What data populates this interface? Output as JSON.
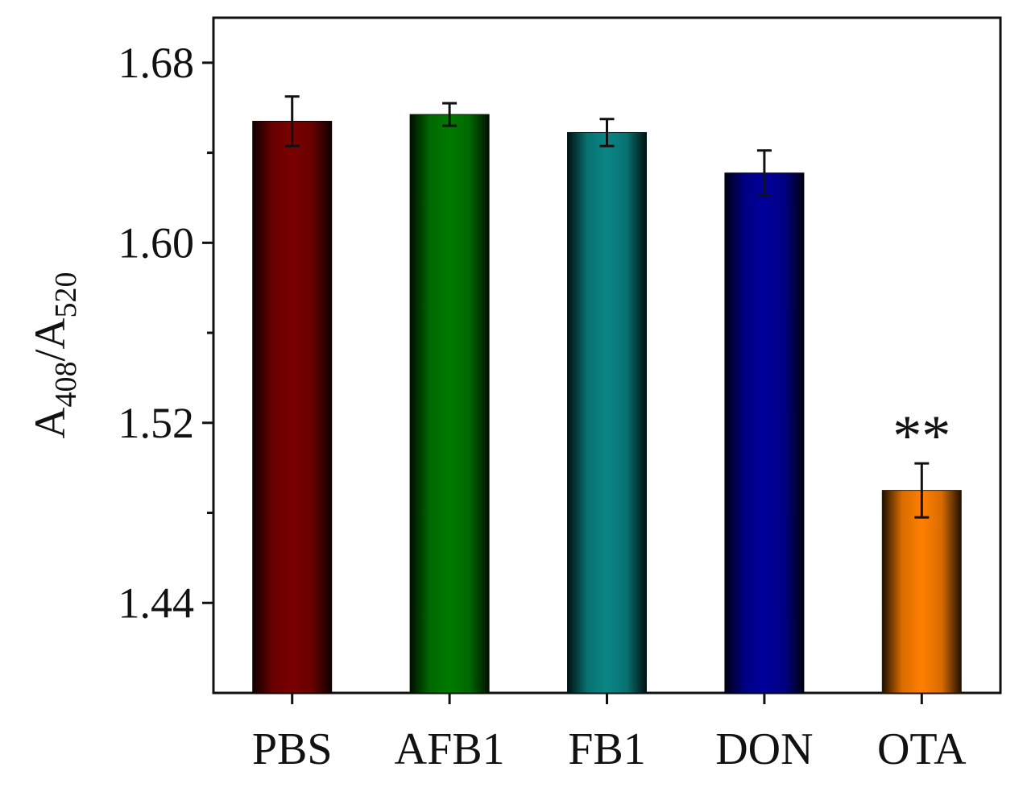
{
  "chart_data": {
    "type": "bar",
    "title": "",
    "xlabel": "",
    "ylabel": {
      "parts": [
        {
          "text": "A",
          "sub": false
        },
        {
          "text": "408",
          "sub": true
        },
        {
          "text": "/A",
          "sub": false
        },
        {
          "text": "520",
          "sub": true
        }
      ]
    },
    "categories": [
      "PBS",
      "AFB1",
      "FB1",
      "DON",
      "OTA"
    ],
    "values": [
      1.654,
      1.657,
      1.649,
      1.631,
      1.49
    ],
    "errors": [
      0.011,
      0.005,
      0.006,
      0.01,
      0.012
    ],
    "colors": [
      "#7a0000",
      "#007a00",
      "#0a8585",
      "#00009a",
      "#ff7f00"
    ],
    "ylim": [
      1.4,
      1.7
    ],
    "yticks": [
      "1.44",
      "1.52",
      "1.60",
      "1.68"
    ],
    "annotations": [
      {
        "category": "OTA",
        "text": "**"
      }
    ],
    "grid": false,
    "legend": "none"
  }
}
